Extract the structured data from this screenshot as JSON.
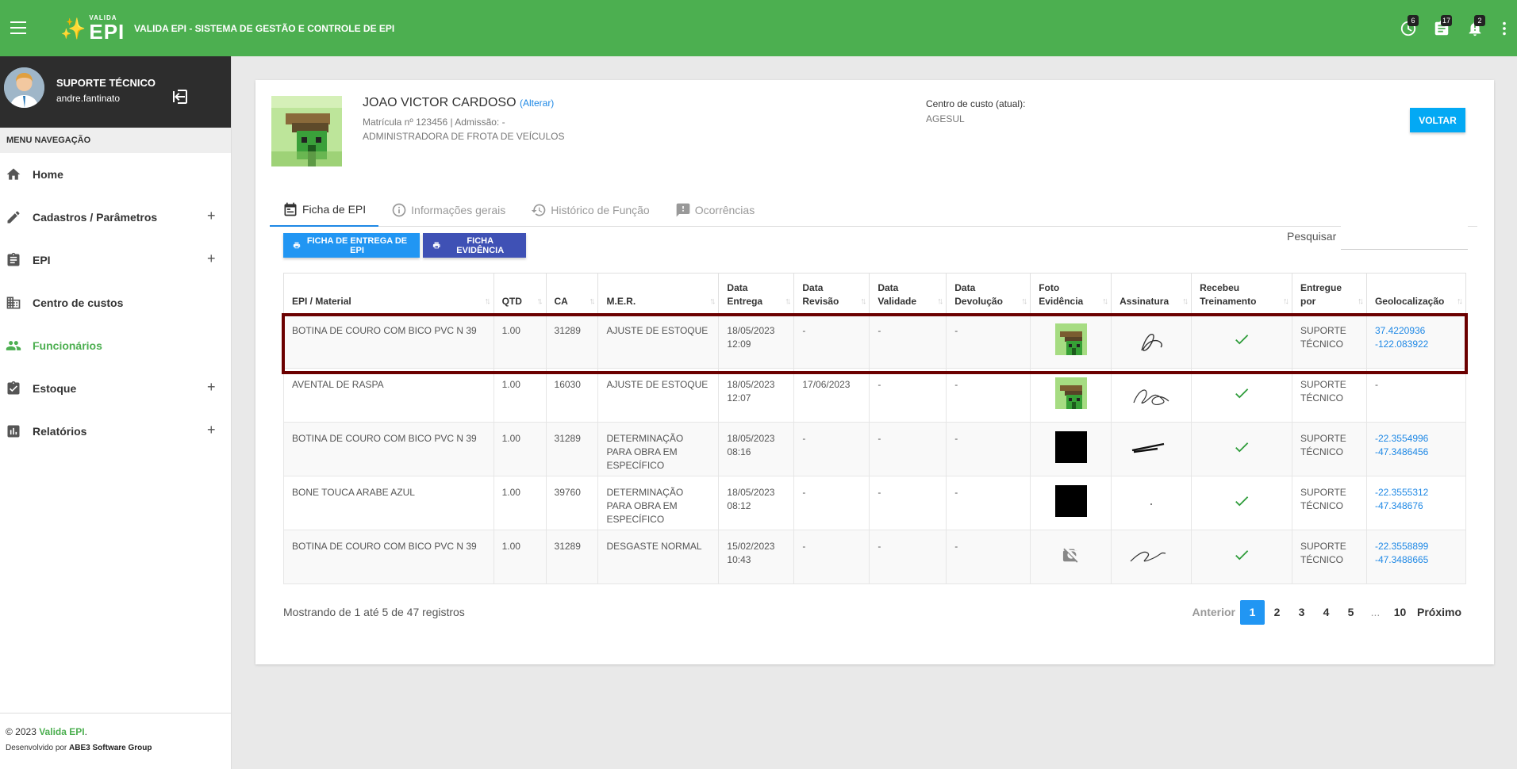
{
  "header": {
    "logo_small": "VALIDA",
    "logo_big": "EPI",
    "system_title": "VALIDA EPI - SISTEMA DE GESTÃO E CONTROLE DE EPI",
    "badges": {
      "history": "6",
      "tasks": "17",
      "alerts": "2"
    }
  },
  "user": {
    "name": "SUPORTE TÉCNICO",
    "login": "andre.fantinato"
  },
  "sidebar": {
    "header": "MENU NAVEGAÇÃO",
    "items": [
      {
        "label": "Home",
        "icon": "home-icon",
        "expandable": false,
        "active": false
      },
      {
        "label": "Cadastros / Parâmetros",
        "icon": "pencil-icon",
        "expandable": true,
        "active": false
      },
      {
        "label": "EPI",
        "icon": "clipboard-icon",
        "expandable": true,
        "active": false
      },
      {
        "label": "Centro de custos",
        "icon": "building-icon",
        "expandable": false,
        "active": false
      },
      {
        "label": "Funcionários",
        "icon": "people-icon",
        "expandable": false,
        "active": true
      },
      {
        "label": "Estoque",
        "icon": "clipboard-check-icon",
        "expandable": true,
        "active": false
      },
      {
        "label": "Relatórios",
        "icon": "bar-chart-icon",
        "expandable": true,
        "active": false
      }
    ],
    "plus": "+",
    "footer": {
      "copyright": "© 2023",
      "brand": "Valida EPI",
      "period": ".",
      "dev_prefix": "Desenvolvido por",
      "dev_company": "ABE3 Software Group"
    }
  },
  "employee": {
    "name": "JOAO VICTOR CARDOSO",
    "change_link": "(Alterar)",
    "registration": "Matrícula nº 123456 | Admissão: -",
    "role": "ADMINISTRADORA DE FROTA DE VEÍCULOS",
    "cost_center_label": "Centro de custo (atual):",
    "cost_center_value": "AGESUL",
    "back_button": "VOLTAR"
  },
  "tabs": [
    {
      "label": "Ficha de EPI",
      "icon": "calendar-icon",
      "active": true
    },
    {
      "label": "Informações gerais",
      "icon": "info-icon",
      "active": false
    },
    {
      "label": "Histórico de Função",
      "icon": "history-icon",
      "active": false
    },
    {
      "label": "Ocorrências",
      "icon": "alert-icon",
      "active": false
    }
  ],
  "actions": {
    "delivery_sheet": "FICHA DE ENTREGA DE EPI",
    "evidence_sheet": "FICHA EVIDÊNCIA",
    "search_label": "Pesquisar",
    "search_value": ""
  },
  "table": {
    "columns": [
      "EPI / Material",
      "QTD",
      "CA",
      "M.E.R.",
      "Data Entrega",
      "Data Revisão",
      "Data Validade",
      "Data Devolução",
      "Foto Evidência",
      "Assinatura",
      "Recebeu Treinamento",
      "Entregue por",
      "Geolocalização"
    ],
    "rows": [
      {
        "material": "BOTINA DE COURO COM BICO PVC N 39",
        "qtd": "1.00",
        "ca": "31289",
        "mer": "AJUSTE DE ESTOQUE",
        "entrega": "18/05/2023 12:09",
        "revisao": "-",
        "validade": "-",
        "devolucao": "-",
        "photo": "green",
        "signature": "sig-a",
        "trained": true,
        "delivered_by": "SUPORTE TÉCNICO",
        "lat": "37.4220936",
        "lng": "-122.083922",
        "geo": true,
        "highlighted": true
      },
      {
        "material": "AVENTAL DE RASPA",
        "qtd": "1.00",
        "ca": "16030",
        "mer": "AJUSTE DE ESTOQUE",
        "entrega": "18/05/2023 12:07",
        "revisao": "17/06/2023",
        "validade": "-",
        "devolucao": "-",
        "photo": "green",
        "signature": "sig-b",
        "trained": true,
        "delivered_by": "SUPORTE TÉCNICO",
        "lat": "-",
        "lng": "",
        "geo": false,
        "highlighted": false
      },
      {
        "material": "BOTINA DE COURO COM BICO PVC N 39",
        "qtd": "1.00",
        "ca": "31289",
        "mer": "DETERMINAÇÃO PARA OBRA EM ESPECÍFICO",
        "entrega": "18/05/2023 08:16",
        "revisao": "-",
        "validade": "-",
        "devolucao": "-",
        "photo": "black",
        "signature": "sig-c",
        "trained": true,
        "delivered_by": "SUPORTE TÉCNICO",
        "lat": "-22.3554996",
        "lng": "-47.3486456",
        "geo": true,
        "highlighted": false
      },
      {
        "material": "BONE TOUCA ARABE AZUL",
        "qtd": "1.00",
        "ca": "39760",
        "mer": "DETERMINAÇÃO PARA OBRA EM ESPECÍFICO",
        "entrega": "18/05/2023 08:12",
        "revisao": "-",
        "validade": "-",
        "devolucao": "-",
        "photo": "black",
        "signature": "sig-d",
        "trained": true,
        "delivered_by": "SUPORTE TÉCNICO",
        "lat": "-22.3555312",
        "lng": "-47.348676",
        "geo": true,
        "highlighted": false
      },
      {
        "material": "BOTINA DE COURO COM BICO PVC N 39",
        "qtd": "1.00",
        "ca": "31289",
        "mer": "DESGASTE NORMAL",
        "entrega": "15/02/2023 10:43",
        "revisao": "-",
        "validade": "-",
        "devolucao": "-",
        "photo": "none",
        "signature": "sig-e",
        "trained": true,
        "delivered_by": "SUPORTE TÉCNICO",
        "lat": "-22.3558899",
        "lng": "-47.3488665",
        "geo": true,
        "highlighted": false
      }
    ]
  },
  "footer": {
    "showing": "Mostrando de 1 até 5 de 47 registros",
    "pagination": {
      "prev": "Anterior",
      "pages": [
        "1",
        "2",
        "3",
        "4",
        "5",
        "...",
        "10"
      ],
      "current": "1",
      "next": "Próximo"
    }
  },
  "colors": {
    "primary_green": "#4caf50",
    "blue": "#2196f3",
    "indigo": "#3f51b5",
    "highlight": "#6b0000",
    "link": "#1e88e5"
  }
}
